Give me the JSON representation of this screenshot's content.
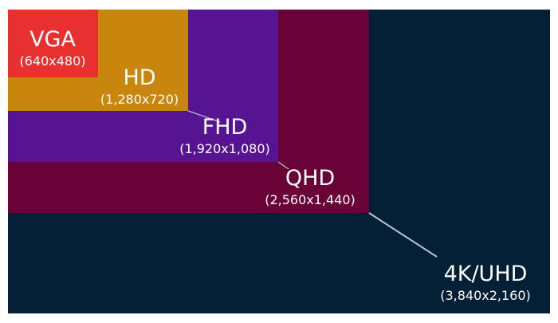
{
  "colors": {
    "background": "#ffffff",
    "vga": "#e93030",
    "hd": "#c9860f",
    "fhd": "#561492",
    "qhd": "#6a0238",
    "uhd": "#042036",
    "connector": "#b8c4d0",
    "text": "#ffffff"
  },
  "resolutions": [
    {
      "id": "uhd",
      "name": "4K/UHD",
      "dims": "(3,840x2,160)",
      "width": 3840,
      "height": 2160
    },
    {
      "id": "qhd",
      "name": "QHD",
      "dims": "(2,560x1,440)",
      "width": 2560,
      "height": 1440
    },
    {
      "id": "fhd",
      "name": "FHD",
      "dims": "(1,920x1,080)",
      "width": 1920,
      "height": 1080
    },
    {
      "id": "hd",
      "name": "HD",
      "dims": "(1,280x720)",
      "width": 1280,
      "height": 720
    },
    {
      "id": "vga",
      "name": "VGA",
      "dims": "(640x480)",
      "width": 640,
      "height": 480
    }
  ]
}
